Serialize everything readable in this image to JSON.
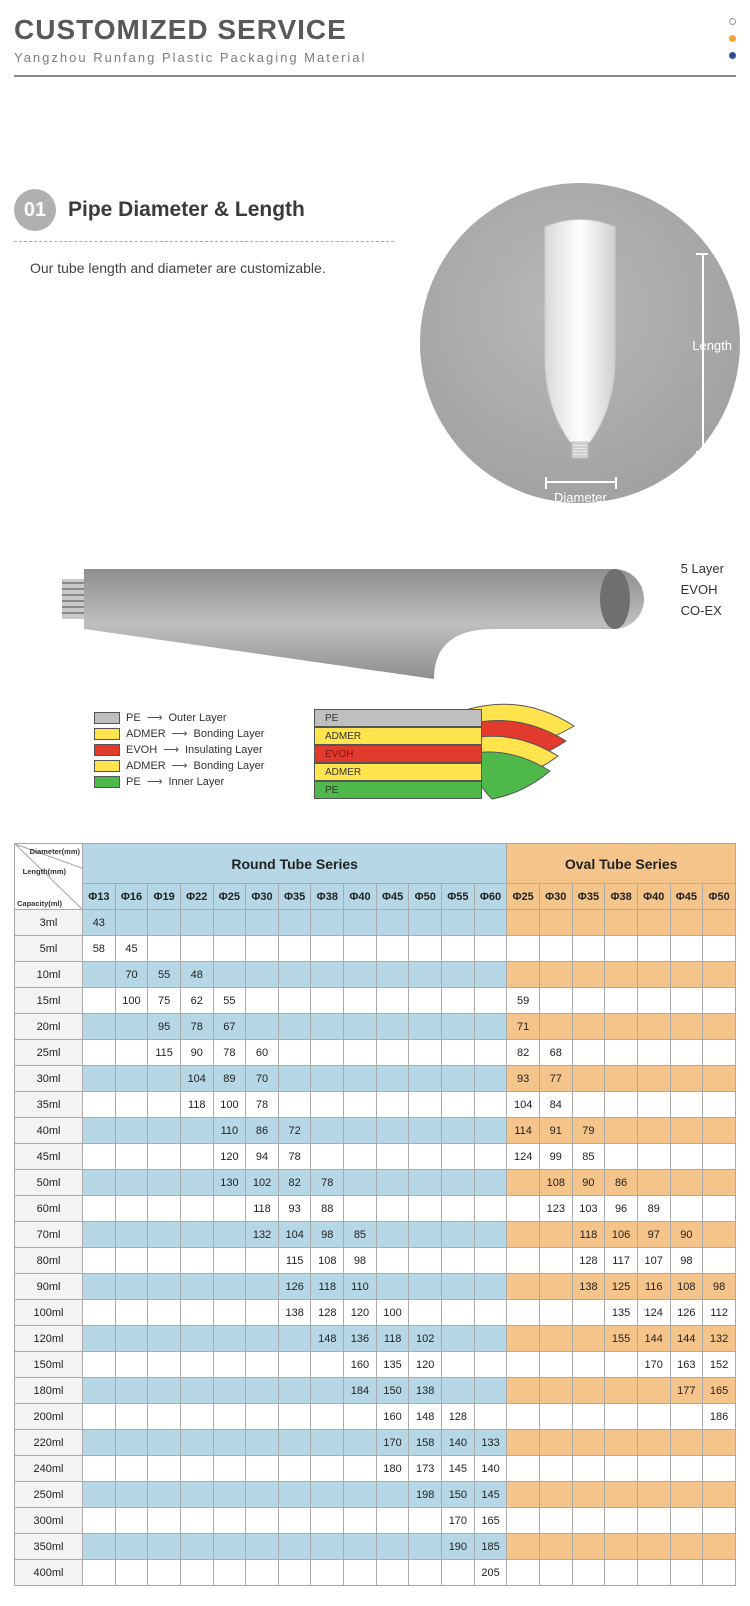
{
  "header": {
    "title": "CUSTOMIZED SERVICE",
    "subtitle": "Yangzhou Runfang Plastic Packaging Material"
  },
  "section01": {
    "badge": "01",
    "title": "Pipe Diameter & Length",
    "text": "Our tube length and diameter are customizable.",
    "length_label": "Length",
    "diameter_label": "Diameter"
  },
  "layers": {
    "right_lines": [
      "5 Layer",
      "EVOH",
      "CO-EX"
    ],
    "legend": [
      {
        "color": "#bfbfbf",
        "name": "PE",
        "desc": "Outer Layer"
      },
      {
        "color": "#ffe44d",
        "name": "ADMER",
        "desc": "Bonding Layer"
      },
      {
        "color": "#e23a2d",
        "name": "EVOH",
        "desc": "Insulating Layer"
      },
      {
        "color": "#ffe44d",
        "name": "ADMER",
        "desc": "Bonding Layer"
      },
      {
        "color": "#4fb84a",
        "name": "PE",
        "desc": "Inner Layer"
      }
    ],
    "stack": [
      {
        "color": "#bfbfbf",
        "label": "PE",
        "txt": "#333"
      },
      {
        "color": "#ffe44d",
        "label": "ADMER",
        "txt": "#333"
      },
      {
        "color": "#e23a2d",
        "label": "EVOH",
        "txt": "#7a1a12"
      },
      {
        "color": "#ffe44d",
        "label": "ADMER",
        "txt": "#333"
      },
      {
        "color": "#4fb84a",
        "label": "PE",
        "txt": "#333"
      }
    ]
  },
  "table": {
    "corner_labels": [
      "Diameter(mm)",
      "Length(mm)",
      "Capacity(ml)"
    ],
    "round_title": "Round Tube Series",
    "oval_title": "Oval Tube Series",
    "round_diameters": [
      "Φ13",
      "Φ16",
      "Φ19",
      "Φ22",
      "Φ25",
      "Φ30",
      "Φ35",
      "Φ38",
      "Φ40",
      "Φ45",
      "Φ50",
      "Φ55",
      "Φ60"
    ],
    "oval_diameters": [
      "Φ25",
      "Φ30",
      "Φ35",
      "Φ38",
      "Φ40",
      "Φ45",
      "Φ50"
    ],
    "colors": {
      "round": "#b6d7e5",
      "oval": "#f4c48a",
      "firstcol": "#f3f3f3",
      "border": "#aaaaaa"
    },
    "rows": [
      {
        "cap": "3ml",
        "stripe": true,
        "round": [
          "43",
          "",
          "",
          "",
          "",
          "",
          "",
          "",
          "",
          "",
          "",
          "",
          ""
        ],
        "oval": [
          "",
          "",
          "",
          "",
          "",
          "",
          ""
        ]
      },
      {
        "cap": "5ml",
        "stripe": false,
        "round": [
          "58",
          "45",
          "",
          "",
          "",
          "",
          "",
          "",
          "",
          "",
          "",
          "",
          ""
        ],
        "oval": [
          "",
          "",
          "",
          "",
          "",
          "",
          ""
        ]
      },
      {
        "cap": "10ml",
        "stripe": true,
        "round": [
          "",
          "70",
          "55",
          "48",
          "",
          "",
          "",
          "",
          "",
          "",
          "",
          "",
          ""
        ],
        "oval": [
          "",
          "",
          "",
          "",
          "",
          "",
          ""
        ]
      },
      {
        "cap": "15ml",
        "stripe": false,
        "round": [
          "",
          "100",
          "75",
          "62",
          "55",
          "",
          "",
          "",
          "",
          "",
          "",
          "",
          ""
        ],
        "oval": [
          "59",
          "",
          "",
          "",
          "",
          "",
          ""
        ]
      },
      {
        "cap": "20ml",
        "stripe": true,
        "round": [
          "",
          "",
          "95",
          "78",
          "67",
          "",
          "",
          "",
          "",
          "",
          "",
          "",
          ""
        ],
        "oval": [
          "71",
          "",
          "",
          "",
          "",
          "",
          ""
        ]
      },
      {
        "cap": "25ml",
        "stripe": false,
        "round": [
          "",
          "",
          "115",
          "90",
          "78",
          "60",
          "",
          "",
          "",
          "",
          "",
          "",
          ""
        ],
        "oval": [
          "82",
          "68",
          "",
          "",
          "",
          "",
          ""
        ]
      },
      {
        "cap": "30ml",
        "stripe": true,
        "round": [
          "",
          "",
          "",
          "104",
          "89",
          "70",
          "",
          "",
          "",
          "",
          "",
          "",
          ""
        ],
        "oval": [
          "93",
          "77",
          "",
          "",
          "",
          "",
          ""
        ]
      },
      {
        "cap": "35ml",
        "stripe": false,
        "round": [
          "",
          "",
          "",
          "118",
          "100",
          "78",
          "",
          "",
          "",
          "",
          "",
          "",
          ""
        ],
        "oval": [
          "104",
          "84",
          "",
          "",
          "",
          "",
          ""
        ]
      },
      {
        "cap": "40ml",
        "stripe": true,
        "round": [
          "",
          "",
          "",
          "",
          "110",
          "86",
          "72",
          "",
          "",
          "",
          "",
          "",
          ""
        ],
        "oval": [
          "114",
          "91",
          "79",
          "",
          "",
          "",
          ""
        ]
      },
      {
        "cap": "45ml",
        "stripe": false,
        "round": [
          "",
          "",
          "",
          "",
          "120",
          "94",
          "78",
          "",
          "",
          "",
          "",
          "",
          ""
        ],
        "oval": [
          "124",
          "99",
          "85",
          "",
          "",
          "",
          ""
        ]
      },
      {
        "cap": "50ml",
        "stripe": true,
        "round": [
          "",
          "",
          "",
          "",
          "130",
          "102",
          "82",
          "78",
          "",
          "",
          "",
          "",
          ""
        ],
        "oval": [
          "",
          "108",
          "90",
          "86",
          "",
          "",
          ""
        ]
      },
      {
        "cap": "60ml",
        "stripe": false,
        "round": [
          "",
          "",
          "",
          "",
          "",
          "118",
          "93",
          "88",
          "",
          "",
          "",
          "",
          ""
        ],
        "oval": [
          "",
          "123",
          "103",
          "96",
          "89",
          "",
          ""
        ]
      },
      {
        "cap": "70ml",
        "stripe": true,
        "round": [
          "",
          "",
          "",
          "",
          "",
          "132",
          "104",
          "98",
          "85",
          "",
          "",
          "",
          ""
        ],
        "oval": [
          "",
          "",
          "118",
          "106",
          "97",
          "90",
          ""
        ]
      },
      {
        "cap": "80ml",
        "stripe": false,
        "round": [
          "",
          "",
          "",
          "",
          "",
          "",
          "115",
          "108",
          "98",
          "",
          "",
          "",
          ""
        ],
        "oval": [
          "",
          "",
          "128",
          "117",
          "107",
          "98",
          ""
        ]
      },
      {
        "cap": "90ml",
        "stripe": true,
        "round": [
          "",
          "",
          "",
          "",
          "",
          "",
          "126",
          "118",
          "110",
          "",
          "",
          "",
          ""
        ],
        "oval": [
          "",
          "",
          "138",
          "125",
          "116",
          "108",
          "98"
        ]
      },
      {
        "cap": "100ml",
        "stripe": false,
        "round": [
          "",
          "",
          "",
          "",
          "",
          "",
          "138",
          "128",
          "120",
          "100",
          "",
          "",
          ""
        ],
        "oval": [
          "",
          "",
          "",
          "135",
          "124",
          "126",
          "112"
        ]
      },
      {
        "cap": "120ml",
        "stripe": true,
        "round": [
          "",
          "",
          "",
          "",
          "",
          "",
          "",
          "148",
          "136",
          "118",
          "102",
          "",
          ""
        ],
        "oval": [
          "",
          "",
          "",
          "155",
          "144",
          "144",
          "132"
        ]
      },
      {
        "cap": "150ml",
        "stripe": false,
        "round": [
          "",
          "",
          "",
          "",
          "",
          "",
          "",
          "",
          "160",
          "135",
          "120",
          "",
          ""
        ],
        "oval": [
          "",
          "",
          "",
          "",
          "170",
          "163",
          "152"
        ]
      },
      {
        "cap": "180ml",
        "stripe": true,
        "round": [
          "",
          "",
          "",
          "",
          "",
          "",
          "",
          "",
          "184",
          "150",
          "138",
          "",
          ""
        ],
        "oval": [
          "",
          "",
          "",
          "",
          "",
          "177",
          "165"
        ]
      },
      {
        "cap": "200ml",
        "stripe": false,
        "round": [
          "",
          "",
          "",
          "",
          "",
          "",
          "",
          "",
          "",
          "160",
          "148",
          "128",
          ""
        ],
        "oval": [
          "",
          "",
          "",
          "",
          "",
          "",
          "186"
        ]
      },
      {
        "cap": "220ml",
        "stripe": true,
        "round": [
          "",
          "",
          "",
          "",
          "",
          "",
          "",
          "",
          "",
          "170",
          "158",
          "140",
          "133"
        ],
        "oval": [
          "",
          "",
          "",
          "",
          "",
          "",
          ""
        ]
      },
      {
        "cap": "240ml",
        "stripe": false,
        "round": [
          "",
          "",
          "",
          "",
          "",
          "",
          "",
          "",
          "",
          "180",
          "173",
          "145",
          "140"
        ],
        "oval": [
          "",
          "",
          "",
          "",
          "",
          "",
          ""
        ]
      },
      {
        "cap": "250ml",
        "stripe": true,
        "round": [
          "",
          "",
          "",
          "",
          "",
          "",
          "",
          "",
          "",
          "",
          "198",
          "150",
          "145"
        ],
        "oval": [
          "",
          "",
          "",
          "",
          "",
          "",
          ""
        ]
      },
      {
        "cap": "300ml",
        "stripe": false,
        "round": [
          "",
          "",
          "",
          "",
          "",
          "",
          "",
          "",
          "",
          "",
          "",
          "170",
          "165"
        ],
        "oval": [
          "",
          "",
          "",
          "",
          "",
          "",
          ""
        ]
      },
      {
        "cap": "350ml",
        "stripe": true,
        "round": [
          "",
          "",
          "",
          "",
          "",
          "",
          "",
          "",
          "",
          "",
          "",
          "190",
          "185"
        ],
        "oval": [
          "",
          "",
          "",
          "",
          "",
          "",
          ""
        ]
      },
      {
        "cap": "400ml",
        "stripe": false,
        "round": [
          "",
          "",
          "",
          "",
          "",
          "",
          "",
          "",
          "",
          "",
          "",
          "",
          "205"
        ],
        "oval": [
          "",
          "",
          "",
          "",
          "",
          "",
          ""
        ]
      }
    ]
  }
}
